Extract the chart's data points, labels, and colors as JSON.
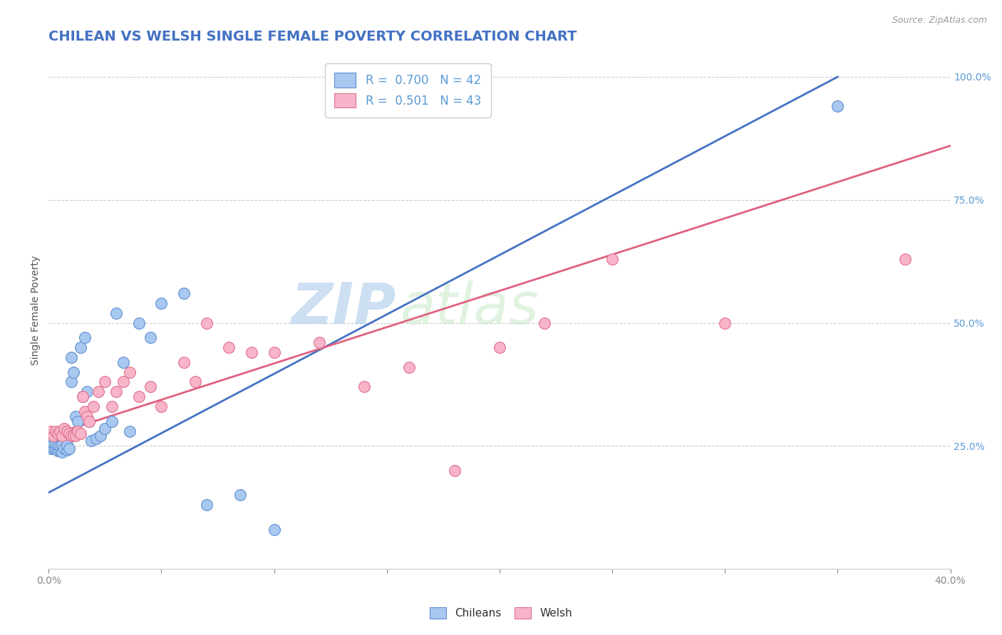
{
  "title": "CHILEAN VS WELSH SINGLE FEMALE POVERTY CORRELATION CHART",
  "source": "Source: ZipAtlas.com",
  "ylabel_label": "Single Female Poverty",
  "xmin": 0.0,
  "xmax": 0.4,
  "ymin": 0.0,
  "ymax": 1.05,
  "chilean_color": "#a8c8f0",
  "welsh_color": "#f8b4c8",
  "chilean_edge_color": "#6090d0",
  "welsh_edge_color": "#e07090",
  "chilean_line_color": "#4472c4",
  "welsh_line_color": "#e06080",
  "chilean_R": 0.7,
  "chilean_N": 42,
  "welsh_R": 0.501,
  "welsh_N": 43,
  "watermark_zip": "ZIP",
  "watermark_atlas": "atlas",
  "title_color": "#4472c4",
  "title_fontsize": 14,
  "axis_label_fontsize": 10,
  "tick_fontsize": 10,
  "legend_fontsize": 12,
  "ch_line_x0": 0.0,
  "ch_line_y0": 0.155,
  "ch_line_x1": 0.35,
  "ch_line_y1": 1.0,
  "wl_line_x0": 0.0,
  "wl_line_y0": 0.27,
  "wl_line_x1": 0.4,
  "wl_line_y1": 0.86,
  "ch_x": [
    0.001,
    0.001,
    0.002,
    0.002,
    0.003,
    0.003,
    0.004,
    0.004,
    0.005,
    0.005,
    0.006,
    0.006,
    0.007,
    0.008,
    0.008,
    0.009,
    0.01,
    0.01,
    0.011,
    0.012,
    0.013,
    0.014,
    0.015,
    0.016,
    0.017,
    0.018,
    0.019,
    0.021,
    0.023,
    0.025,
    0.028,
    0.03,
    0.033,
    0.036,
    0.04,
    0.045,
    0.05,
    0.06,
    0.07,
    0.085,
    0.1,
    0.35
  ],
  "ch_y": [
    0.245,
    0.255,
    0.245,
    0.255,
    0.245,
    0.255,
    0.24,
    0.25,
    0.24,
    0.25,
    0.238,
    0.252,
    0.245,
    0.242,
    0.252,
    0.244,
    0.38,
    0.43,
    0.4,
    0.31,
    0.3,
    0.45,
    0.35,
    0.47,
    0.36,
    0.3,
    0.26,
    0.265,
    0.27,
    0.285,
    0.3,
    0.52,
    0.42,
    0.28,
    0.5,
    0.47,
    0.54,
    0.56,
    0.13,
    0.15,
    0.08,
    0.94
  ],
  "wl_x": [
    0.001,
    0.002,
    0.003,
    0.004,
    0.005,
    0.006,
    0.007,
    0.008,
    0.009,
    0.01,
    0.011,
    0.012,
    0.013,
    0.014,
    0.015,
    0.016,
    0.017,
    0.018,
    0.02,
    0.022,
    0.025,
    0.028,
    0.03,
    0.033,
    0.036,
    0.04,
    0.045,
    0.05,
    0.06,
    0.065,
    0.07,
    0.08,
    0.09,
    0.1,
    0.12,
    0.14,
    0.16,
    0.18,
    0.2,
    0.22,
    0.25,
    0.3,
    0.38
  ],
  "wl_y": [
    0.28,
    0.27,
    0.28,
    0.275,
    0.28,
    0.27,
    0.285,
    0.28,
    0.275,
    0.27,
    0.27,
    0.27,
    0.28,
    0.275,
    0.35,
    0.32,
    0.31,
    0.3,
    0.33,
    0.36,
    0.38,
    0.33,
    0.36,
    0.38,
    0.4,
    0.35,
    0.37,
    0.33,
    0.42,
    0.38,
    0.5,
    0.45,
    0.44,
    0.44,
    0.46,
    0.37,
    0.41,
    0.2,
    0.45,
    0.5,
    0.63,
    0.5,
    0.63
  ]
}
